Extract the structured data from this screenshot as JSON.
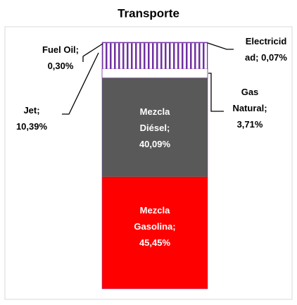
{
  "chart_data": {
    "type": "stacked_bar",
    "title": "Transporte",
    "ylim": [
      0,
      100
    ],
    "series": [
      {
        "name": "Mezcla Gasolina",
        "color": "#ff0000",
        "values": [
          45.45
        ],
        "value_labels": [
          "Mezcla\nGasolina;\n45,45%"
        ]
      },
      {
        "name": "Mezcla Diésel",
        "color": "#595959",
        "values": [
          40.09
        ],
        "value_labels": [
          "Mezcla\nDiésel;\n40,09%"
        ]
      },
      {
        "name": "Gas Natural",
        "color": "#ffffff",
        "values": [
          3.71
        ],
        "value_labels": [
          "Gas\nNatural;\n3,71%"
        ]
      },
      {
        "name": "Jet",
        "color": "#7030a0",
        "hatch": true,
        "values": [
          10.39
        ],
        "value_labels": [
          "Jet;\n10,39%"
        ]
      },
      {
        "name": "Fuel Oil",
        "color": "#7030a0",
        "values": [
          0.3
        ],
        "value_labels": [
          "Fuel Oil;\n0,30%"
        ]
      },
      {
        "name": "Electricidad",
        "color": "#7030a0",
        "values": [
          0.07
        ],
        "value_labels": [
          "Electricid\nad; 0,07%"
        ]
      }
    ]
  }
}
